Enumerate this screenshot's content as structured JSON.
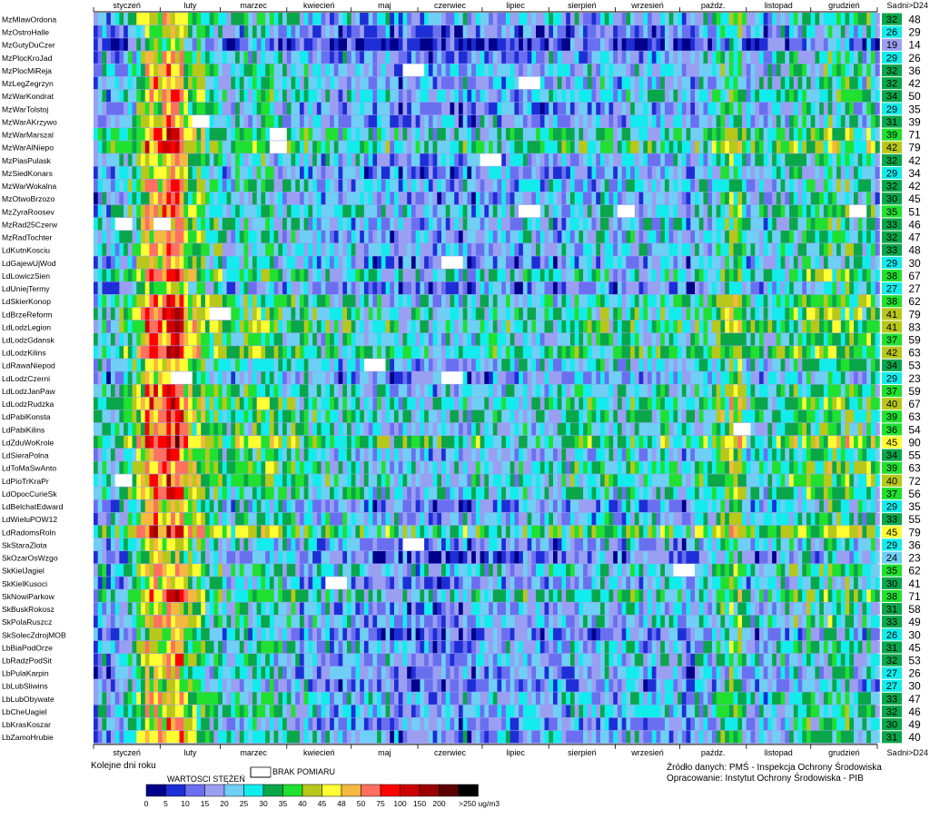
{
  "chart_data": {
    "type": "heatmap",
    "months": [
      "styczeń",
      "luty",
      "marzec",
      "kwiecień",
      "maj",
      "czerwiec",
      "lipiec",
      "sierpień",
      "wrzesień",
      "paźdz.",
      "listopad",
      "grudzień"
    ],
    "columns": {
      "sa": "Sa",
      "dni": "dni>D24"
    },
    "x_axis_label": "Kolejne dni roku",
    "legend": {
      "title": "WARTOSCI STĘŻEŃ",
      "no_data_label": "BRAK POMIARU",
      "thresholds": [
        "0",
        "5",
        "10",
        "15",
        "20",
        "25",
        "30",
        "35",
        "40",
        "45",
        "48",
        "50",
        "75",
        "100",
        "150",
        "200",
        ">250 ug/m3"
      ],
      "colors": [
        "#00008a",
        "#1e2ed6",
        "#6a6ff0",
        "#9a9ff2",
        "#6fcff5",
        "#12ecec",
        "#0aa64a",
        "#20e030",
        "#b8c81a",
        "#ffff33",
        "#f5b840",
        "#ff7060",
        "#ff0000",
        "#cc0000",
        "#9a0000",
        "#5a0000",
        "#000000"
      ]
    },
    "stations": [
      {
        "name": "MzMlawOrdona",
        "sa": 32,
        "dni": 48
      },
      {
        "name": "MzOstroHalle",
        "sa": 26,
        "dni": 29
      },
      {
        "name": "MzGutyDuCzer",
        "sa": 19,
        "dni": 14
      },
      {
        "name": "MzPlocKroJad",
        "sa": 29,
        "dni": 26
      },
      {
        "name": "MzPlocMiReja",
        "sa": 32,
        "dni": 36
      },
      {
        "name": "MzLegZegrzyn",
        "sa": 32,
        "dni": 42
      },
      {
        "name": "MzWarKondrat",
        "sa": 34,
        "dni": 50
      },
      {
        "name": "MzWarTolstoj",
        "sa": 29,
        "dni": 35
      },
      {
        "name": "MzWarAKrzywo",
        "sa": 31,
        "dni": 39
      },
      {
        "name": "MzWarMarszal",
        "sa": 39,
        "dni": 71
      },
      {
        "name": "MzWarAlNiepo",
        "sa": 42,
        "dni": 79
      },
      {
        "name": "MzPiasPulask",
        "sa": 32,
        "dni": 42
      },
      {
        "name": "MzSiedKonars",
        "sa": 29,
        "dni": 34
      },
      {
        "name": "MzWarWokalna",
        "sa": 32,
        "dni": 42
      },
      {
        "name": "MzOtwoBrzozo",
        "sa": 30,
        "dni": 45
      },
      {
        "name": "MzZyraRoosev",
        "sa": 35,
        "dni": 51
      },
      {
        "name": "MzRad25Czerw",
        "sa": 33,
        "dni": 46
      },
      {
        "name": "MzRadTochter",
        "sa": 32,
        "dni": 47
      },
      {
        "name": "LdKutnKosciu",
        "sa": 33,
        "dni": 48
      },
      {
        "name": "LdGajewUjWod",
        "sa": 29,
        "dni": 30
      },
      {
        "name": "LdLowiczSien",
        "sa": 38,
        "dni": 67
      },
      {
        "name": "LdUniejTermy",
        "sa": 27,
        "dni": 27
      },
      {
        "name": "LdSkierKonop",
        "sa": 38,
        "dni": 62
      },
      {
        "name": "LdBrzeReform",
        "sa": 41,
        "dni": 79
      },
      {
        "name": "LdLodzLegion",
        "sa": 41,
        "dni": 83
      },
      {
        "name": "LdLodzGdansk",
        "sa": 37,
        "dni": 59
      },
      {
        "name": "LdLodzKilins",
        "sa": 42,
        "dni": 63
      },
      {
        "name": "LdRawaNiepod",
        "sa": 34,
        "dni": 53
      },
      {
        "name": "LdLodzCzerni",
        "sa": 29,
        "dni": 23
      },
      {
        "name": "LdLodzJanPaw",
        "sa": 37,
        "dni": 59
      },
      {
        "name": "LdLodzRudzka",
        "sa": 40,
        "dni": 67
      },
      {
        "name": "LdPabiKonsta",
        "sa": 39,
        "dni": 63
      },
      {
        "name": "LdPabiKilins",
        "sa": 36,
        "dni": 54
      },
      {
        "name": "LdZduWoKrole",
        "sa": 45,
        "dni": 90
      },
      {
        "name": "LdSieraPolna",
        "sa": 34,
        "dni": 55
      },
      {
        "name": "LdToMaSwAnto",
        "sa": 39,
        "dni": 63
      },
      {
        "name": "LdPioTrKraPr",
        "sa": 40,
        "dni": 72
      },
      {
        "name": "LdOpocCurieSk",
        "sa": 37,
        "dni": 56
      },
      {
        "name": "LdBelchatEdward",
        "sa": 29,
        "dni": 35
      },
      {
        "name": "LdWieluPOW12",
        "sa": 33,
        "dni": 55
      },
      {
        "name": "LdRadomsRoln",
        "sa": 45,
        "dni": 79
      },
      {
        "name": "SkStaraZlota",
        "sa": 29,
        "dni": 36
      },
      {
        "name": "SkOzarOsWzgo",
        "sa": 24,
        "dni": 23
      },
      {
        "name": "SkKielJagiel",
        "sa": 35,
        "dni": 62
      },
      {
        "name": "SkKielKusoci",
        "sa": 30,
        "dni": 41
      },
      {
        "name": "SkNowiParkow",
        "sa": 38,
        "dni": 71
      },
      {
        "name": "SkBuskRokosz",
        "sa": 31,
        "dni": 58
      },
      {
        "name": "SkPolaRuszcz",
        "sa": 33,
        "dni": 49
      },
      {
        "name": "SkSolecZdrojMOB",
        "sa": 26,
        "dni": 30
      },
      {
        "name": "LbBiaPodOrze",
        "sa": 31,
        "dni": 45
      },
      {
        "name": "LbRadzPodSit",
        "sa": 32,
        "dni": 53
      },
      {
        "name": "LbPulaKarpin",
        "sa": 27,
        "dni": 26
      },
      {
        "name": "LbLubSliwins",
        "sa": 27,
        "dni": 30
      },
      {
        "name": "LbLubObywate",
        "sa": 33,
        "dni": 47
      },
      {
        "name": "LbCheUagiel",
        "sa": 32,
        "dni": 46
      },
      {
        "name": "LbKrasKoszar",
        "sa": 30,
        "dni": 49
      },
      {
        "name": "LbZamoHrubie",
        "sa": 31,
        "dni": 40
      }
    ]
  },
  "footer": {
    "source": "Źródło danych: PMŚ - Inspekcja Ochrony Środowiska",
    "author": "Opracowanie: Instytut Ochrony Środowiska - PIB"
  }
}
